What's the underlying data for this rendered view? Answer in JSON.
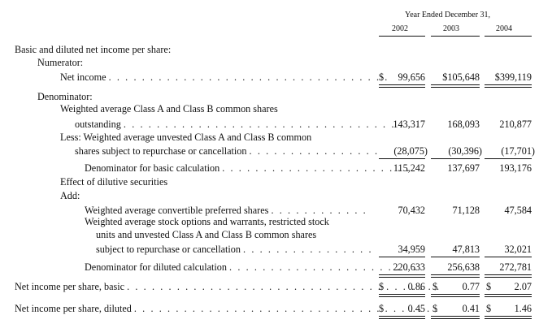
{
  "header": {
    "period": "Year Ended December 31,",
    "years": [
      "2002",
      "2003",
      "2004"
    ]
  },
  "rows": {
    "basic_title": "Basic and diluted net income per share:",
    "numerator": "Numerator:",
    "net_income": {
      "label": "Net income",
      "dots": ". . . . . . . . . . . . . . . . . . . . . . . . . . . . . . . . . .",
      "dollar": "$",
      "v2002": "99,656",
      "v2003": "$105,648",
      "v2004": "$399,119"
    },
    "denominator": "Denominator:",
    "weighted_line1": "Weighted average Class A and Class B common shares",
    "weighted_line2": {
      "label": "outstanding",
      "dots": ". . . . . . . . . . . . . . . . . . . . . . . . . . . . . . . . . . . .",
      "v2002": "143,317",
      "v2003": "168,093",
      "v2004": "210,877"
    },
    "less_line1": "Less: Weighted average unvested Class A and Class B common",
    "less_line2": {
      "label": "shares subject to repurchase or cancellation",
      "dots": ". . . . . . . . . . . . . . . .",
      "v2002": "(28,075)",
      "v2003": "(30,396)",
      "v2004": "(17,701)"
    },
    "denom_basic": {
      "label": "Denominator for basic calculation",
      "dots": ". . . . . . . . . . . . . . . . . . . . . . .",
      "v2002": "115,242",
      "v2003": "137,697",
      "v2004": "193,176"
    },
    "dilutive": "Effect of dilutive securities",
    "add": "Add:",
    "convertible": {
      "label": "Weighted average convertible preferred shares",
      "dots": ". . . . . . . . . . . .",
      "v2002": "70,432",
      "v2003": "71,128",
      "v2004": "47,584"
    },
    "options_line1": "Weighted average stock options and warrants, restricted stock",
    "options_line2": "units and unvested Class A and Class B common shares",
    "options_line3": {
      "label": "subject to repurchase or cancellation",
      "dots": ". . . . . . . . . . . . . . . .",
      "v2002": "34,959",
      "v2003": "47,813",
      "v2004": "32,021"
    },
    "denom_diluted": {
      "label": "Denominator for diluted calculation",
      "dots": ". . . . . . . . . . . . . . . . . . . . . . .",
      "v2002": "220,633",
      "v2003": "256,638",
      "v2004": "272,781"
    },
    "eps_basic": {
      "label": "Net income per share, basic",
      "dots": ". . . . . . . . . . . . . . . . . . . . . . . . . . . . . . . . . . . . . .",
      "dollar": "$",
      "v2002": "0.86",
      "v2003": "0.77",
      "v2004": "2.07"
    },
    "eps_diluted": {
      "label": "Net income per share, diluted",
      "dots": ". . . . . . . . . . . . . . . . . . . . . . . . . . . . . . . . . . . . .",
      "dollar": "$",
      "v2002": "0.45",
      "v2003": "0.41",
      "v2004": "1.46"
    }
  }
}
